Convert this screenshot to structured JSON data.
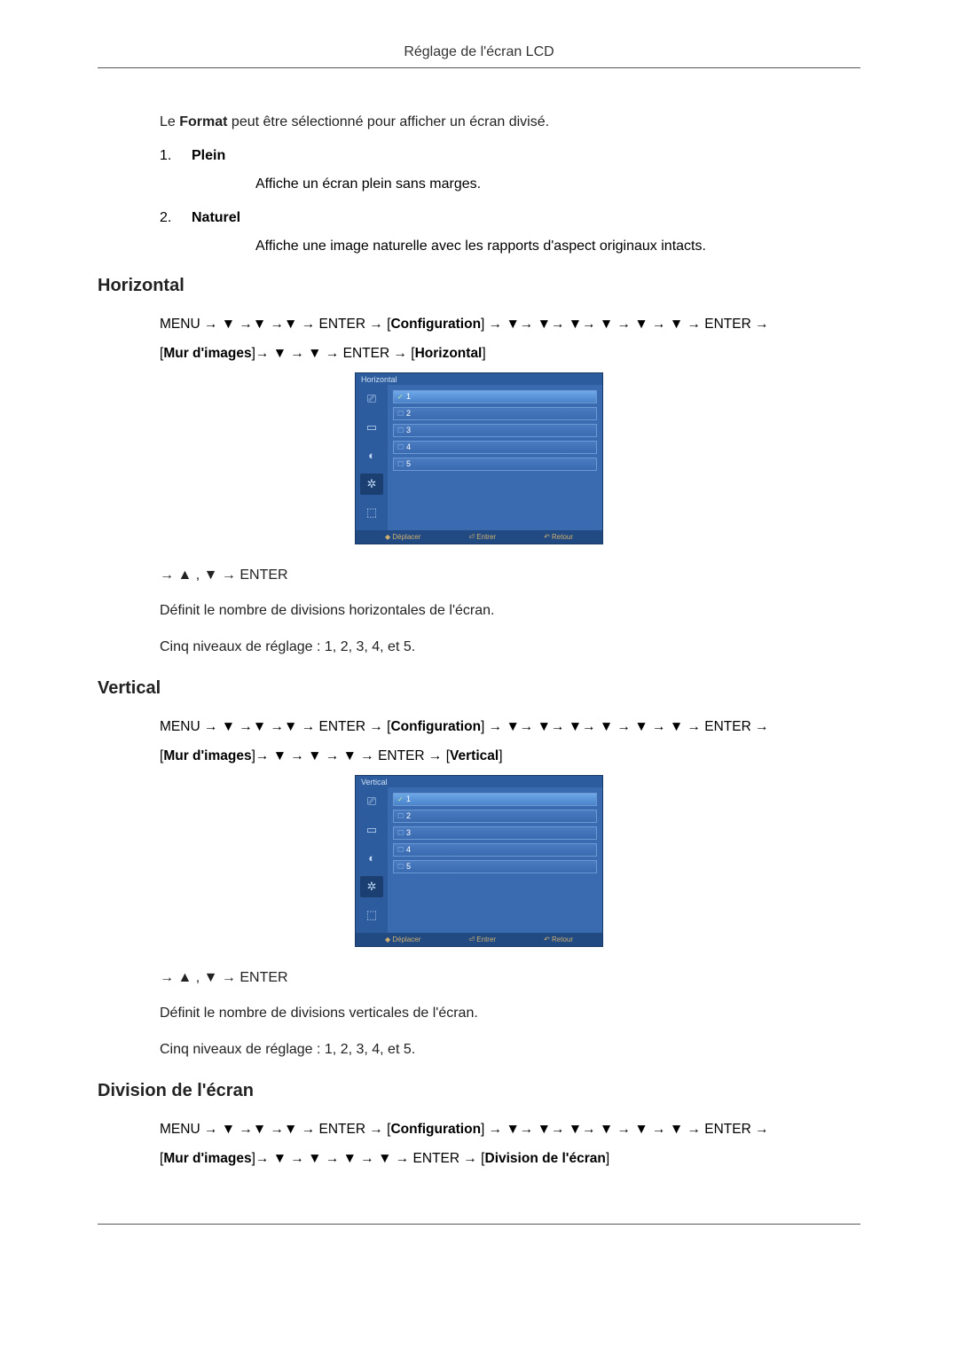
{
  "header": {
    "title": "Réglage de l'écran LCD"
  },
  "intro": {
    "text_prefix": "Le ",
    "format_word": "Format",
    "text_suffix": " peut être sélectionné pour afficher un écran divisé."
  },
  "format_list": [
    {
      "num": "1.",
      "label": "Plein",
      "desc": "Affiche un écran plein sans marges."
    },
    {
      "num": "2.",
      "label": "Naturel",
      "desc": "Affiche une image naturelle avec les rapports d'aspect originaux intacts."
    }
  ],
  "sections": {
    "horizontal": {
      "heading": "Horizontal",
      "nav1_parts": [
        "MENU → ▼ →▼ →▼ → ENTER → [",
        "Configuration",
        "] → ▼→ ▼→ ▼→ ▼ → ▼ → ▼ → ENTER →"
      ],
      "nav2_parts": [
        "[",
        "Mur d'images",
        "]→ ▼ → ▼ → ENTER → [",
        "Horizontal",
        "]"
      ],
      "osd_title": "Horizontal",
      "after_nav": "→ ▲ , ▼ → ENTER",
      "desc1": "Définit le nombre de divisions horizontales de l'écran.",
      "desc2": "Cinq niveaux de réglage : 1, 2, 3, 4, et 5."
    },
    "vertical": {
      "heading": "Vertical",
      "nav1_parts": [
        "MENU → ▼ →▼ →▼ → ENTER → [",
        "Configuration",
        "] → ▼→ ▼→ ▼→ ▼ → ▼ → ▼ → ENTER →"
      ],
      "nav2_parts": [
        "[",
        "Mur d'images",
        "]→ ▼ → ▼ → ▼ → ENTER → [",
        "Vertical",
        "]"
      ],
      "osd_title": "Vertical",
      "after_nav": "→ ▲ , ▼ → ENTER",
      "desc1": "Définit le nombre de divisions verticales de l'écran.",
      "desc2": "Cinq niveaux de réglage : 1, 2, 3, 4, et 5."
    },
    "division": {
      "heading": "Division de l'écran",
      "nav1_parts": [
        "MENU → ▼ →▼ →▼ → ENTER → [",
        "Configuration",
        "] → ▼→ ▼→ ▼→ ▼ → ▼ → ▼ → ENTER →"
      ],
      "nav2_parts": [
        "[",
        "Mur d'images",
        "]→ ▼ → ▼ → ▼ → ▼ → ENTER → [",
        "Division de l'écran",
        "]"
      ]
    }
  },
  "osd": {
    "rows": [
      {
        "num": "1",
        "selected": true
      },
      {
        "num": "2",
        "selected": false
      },
      {
        "num": "3",
        "selected": false
      },
      {
        "num": "4",
        "selected": false
      },
      {
        "num": "5",
        "selected": false
      }
    ],
    "sidebar_icons": [
      "⎚",
      "▭",
      "◐",
      "✲",
      "⬚"
    ],
    "selected_icon_index": 3,
    "footer": {
      "move": "◆ Déplacer",
      "enter": "⏎ Entrer",
      "back": "↶ Retour"
    },
    "colors": {
      "bg": "#2d5c9e",
      "content_bg": "#3a6bb0",
      "row_border": "#6a99d5",
      "footer_bg": "#224a82",
      "footer_text": "#cfb070"
    }
  }
}
